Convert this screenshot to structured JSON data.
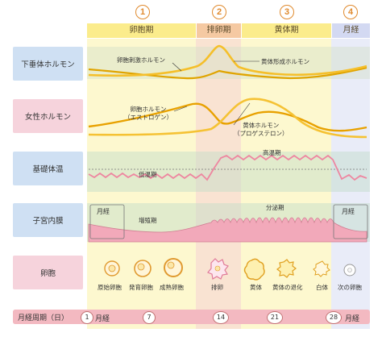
{
  "phases": [
    {
      "number": "1",
      "name": "卵胞期"
    },
    {
      "number": "2",
      "name": "排卵期"
    },
    {
      "number": "3",
      "name": "黄体期"
    },
    {
      "number": "4",
      "name": "月経"
    }
  ],
  "rows": {
    "pituitary": {
      "label": "下垂体ホルモン",
      "curves": [
        "卵胞刺激ホルモン",
        "黄体形成ホルモン"
      ]
    },
    "female_hormones": {
      "label": "女性ホルモン",
      "curves": [
        "卵胞ホルモン\n（エストロゲン）",
        "黄体ホルモン\n（プロゲステロン）"
      ]
    },
    "basal_temp": {
      "label": "基礎体温",
      "low": "低温期",
      "high": "高温期"
    },
    "endometrium": {
      "label": "子宮内膜",
      "menses_left": "月経",
      "proliferative": "増殖期",
      "secretory": "分泌期",
      "menses_right": "月経"
    },
    "follicle": {
      "label": "卵胞",
      "stages": [
        "原始卵胞",
        "発育卵胞",
        "成熟卵胞",
        "排卵",
        "黄体",
        "黄体の退化",
        "白体",
        "次の卵胞"
      ]
    }
  },
  "cycle": {
    "label": "月経周期（日）",
    "days": [
      "1",
      "7",
      "14",
      "21",
      "28"
    ],
    "menses_left": "月経",
    "menses_right": "月経"
  },
  "colors": {
    "follicular": "#fdf6b8",
    "ovulation": "#f7d4b8",
    "luteal": "#fdf6b8",
    "menses": "#dfe3f5",
    "label_blue": "#cfe0f3",
    "label_pink": "#f6d3dc",
    "curve": "#f0b400",
    "endometrium": "#f2a7b8"
  }
}
